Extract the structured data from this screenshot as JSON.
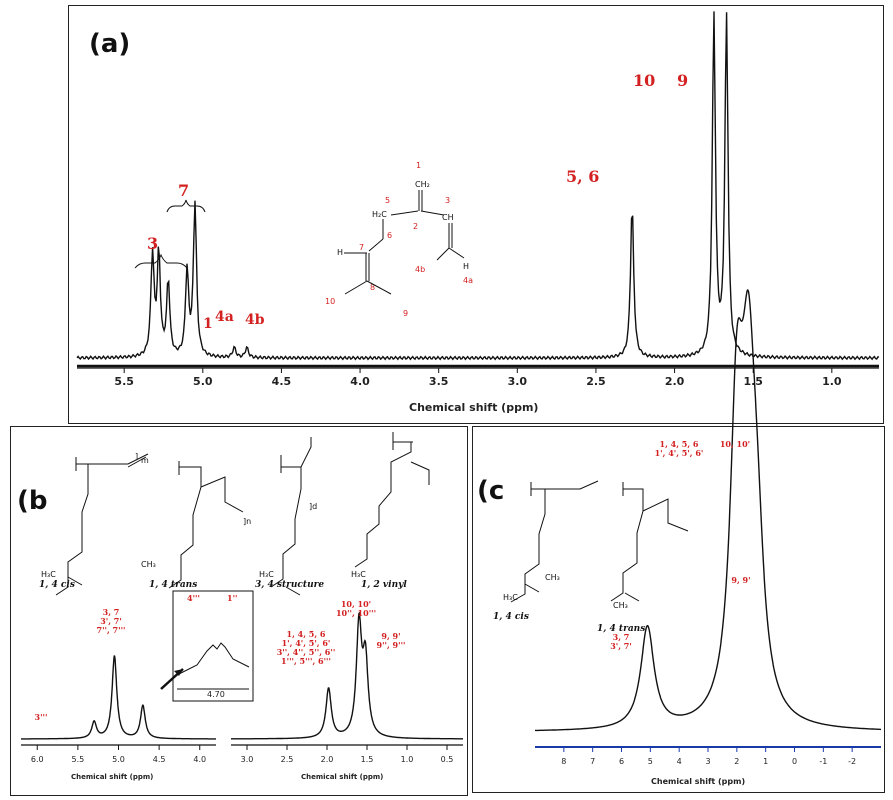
{
  "panel_a": {
    "label": "(a)",
    "xlabel": "Chemical shift (ppm)",
    "peak_labels": [
      "10",
      "9",
      "5, 6",
      "7",
      "3",
      "1",
      "4a",
      "4b"
    ],
    "structure_numbers": [
      "1",
      "5",
      "2",
      "3",
      "6",
      "7",
      "8",
      "9",
      "10",
      "4b",
      "4a"
    ],
    "atoms": [
      "CH₂",
      "H₂C",
      "CH",
      "C",
      "H",
      "H"
    ]
  },
  "panel_b": {
    "label": "(b",
    "isomers": [
      "1, 4 cis",
      "1, 4 trans",
      "3, 4 structure",
      "1, 2 vinyl"
    ],
    "peak_labels": [
      "3, 7\n3', 7'\n7'', 7'''",
      "3'''",
      "1, 4, 5, 6\n1', 4', 5', 6'\n3'', 4'', 5'', 6''\n1''', 5''', 6'''",
      "10, 10'\n10'', 10'''",
      "9, 9'\n9'', 9'''"
    ],
    "inset_labels": [
      "4'''",
      "1''"
    ],
    "inset_tick": "4.70",
    "xlabel_left": "Chemical shift (ppm)",
    "xlabel_right": "Chemical shift (ppm)"
  },
  "panel_c": {
    "label": "(c",
    "isomers": [
      "1, 4 cis",
      "1, 4 trans"
    ],
    "peak_labels": [
      "1, 4, 5, 6\n1', 4', 5', 6'",
      "10, 10'",
      "9, 9'",
      "3, 7\n3', 7'"
    ],
    "xlabel": "Chemical shift (ppm)"
  },
  "chart_data": [
    {
      "type": "line",
      "title": "(a)",
      "xlabel": "Chemical shift (ppm)",
      "ylabel": "",
      "xlim": [
        5.8,
        0.7
      ],
      "x_ticks": [
        5.5,
        5.0,
        4.5,
        4.0,
        3.5,
        3.0,
        2.5,
        2.0,
        1.5,
        1.0
      ],
      "peaks": [
        {
          "x": 5.32,
          "height": 0.3,
          "label": "3"
        },
        {
          "x": 5.28,
          "height": 0.3,
          "label": "3"
        },
        {
          "x": 5.22,
          "height": 0.22,
          "label": "3"
        },
        {
          "x": 5.1,
          "height": 0.25,
          "label": "7"
        },
        {
          "x": 5.05,
          "height": 0.45,
          "label": "7"
        },
        {
          "x": 4.8,
          "height": 0.03,
          "label": "4a"
        },
        {
          "x": 4.72,
          "height": 0.03,
          "label": "4b"
        },
        {
          "x": 2.27,
          "height": 0.45,
          "label": "5, 6"
        },
        {
          "x": 1.75,
          "height": 1.0,
          "label": "10"
        },
        {
          "x": 1.67,
          "height": 1.0,
          "label": "9"
        }
      ]
    },
    {
      "type": "line",
      "title": "(b",
      "xlabel": "Chemical shift (ppm)",
      "ylabel": "",
      "segments": [
        {
          "xlim": [
            6.2,
            3.8
          ],
          "x_ticks": [
            6.0,
            5.5,
            5.0,
            4.5,
            4.0
          ],
          "peaks": [
            {
              "x": 5.3,
              "height": 0.15,
              "label": "3'''"
            },
            {
              "x": 5.05,
              "height": 0.75,
              "label": "3, 7"
            },
            {
              "x": 4.7,
              "height": 0.3,
              "label": "4''', 1''"
            }
          ]
        },
        {
          "xlim": [
            3.2,
            0.3
          ],
          "x_ticks": [
            3.0,
            2.5,
            2.0,
            1.5,
            1.0,
            0.5
          ],
          "peaks": [
            {
              "x": 1.98,
              "height": 0.45,
              "label": "1, 4, 5, 6"
            },
            {
              "x": 1.6,
              "height": 1.0,
              "label": "10, 10'"
            },
            {
              "x": 1.52,
              "height": 0.68,
              "label": "9, 9'"
            }
          ]
        }
      ]
    },
    {
      "type": "line",
      "title": "(c",
      "xlabel": "Chemical shift (ppm)",
      "ylabel": "",
      "xlim": [
        9,
        -3
      ],
      "x_ticks": [
        8,
        7,
        6,
        5,
        4,
        3,
        2,
        1,
        0,
        -1,
        -2
      ],
      "tick_labels": [
        "8",
        "7",
        "6",
        "5",
        "4",
        "3",
        "2",
        "1",
        "0",
        "-1",
        "-2"
      ],
      "peaks": [
        {
          "x": 5.1,
          "height": 0.35,
          "label": "3, 7"
        },
        {
          "x": 2.0,
          "height": 1.0,
          "label": "1, 4, 5, 6"
        },
        {
          "x": 1.6,
          "height": 0.98,
          "label": "10, 10'"
        },
        {
          "x": 1.3,
          "height": 0.45,
          "label": "9, 9'"
        }
      ]
    }
  ]
}
